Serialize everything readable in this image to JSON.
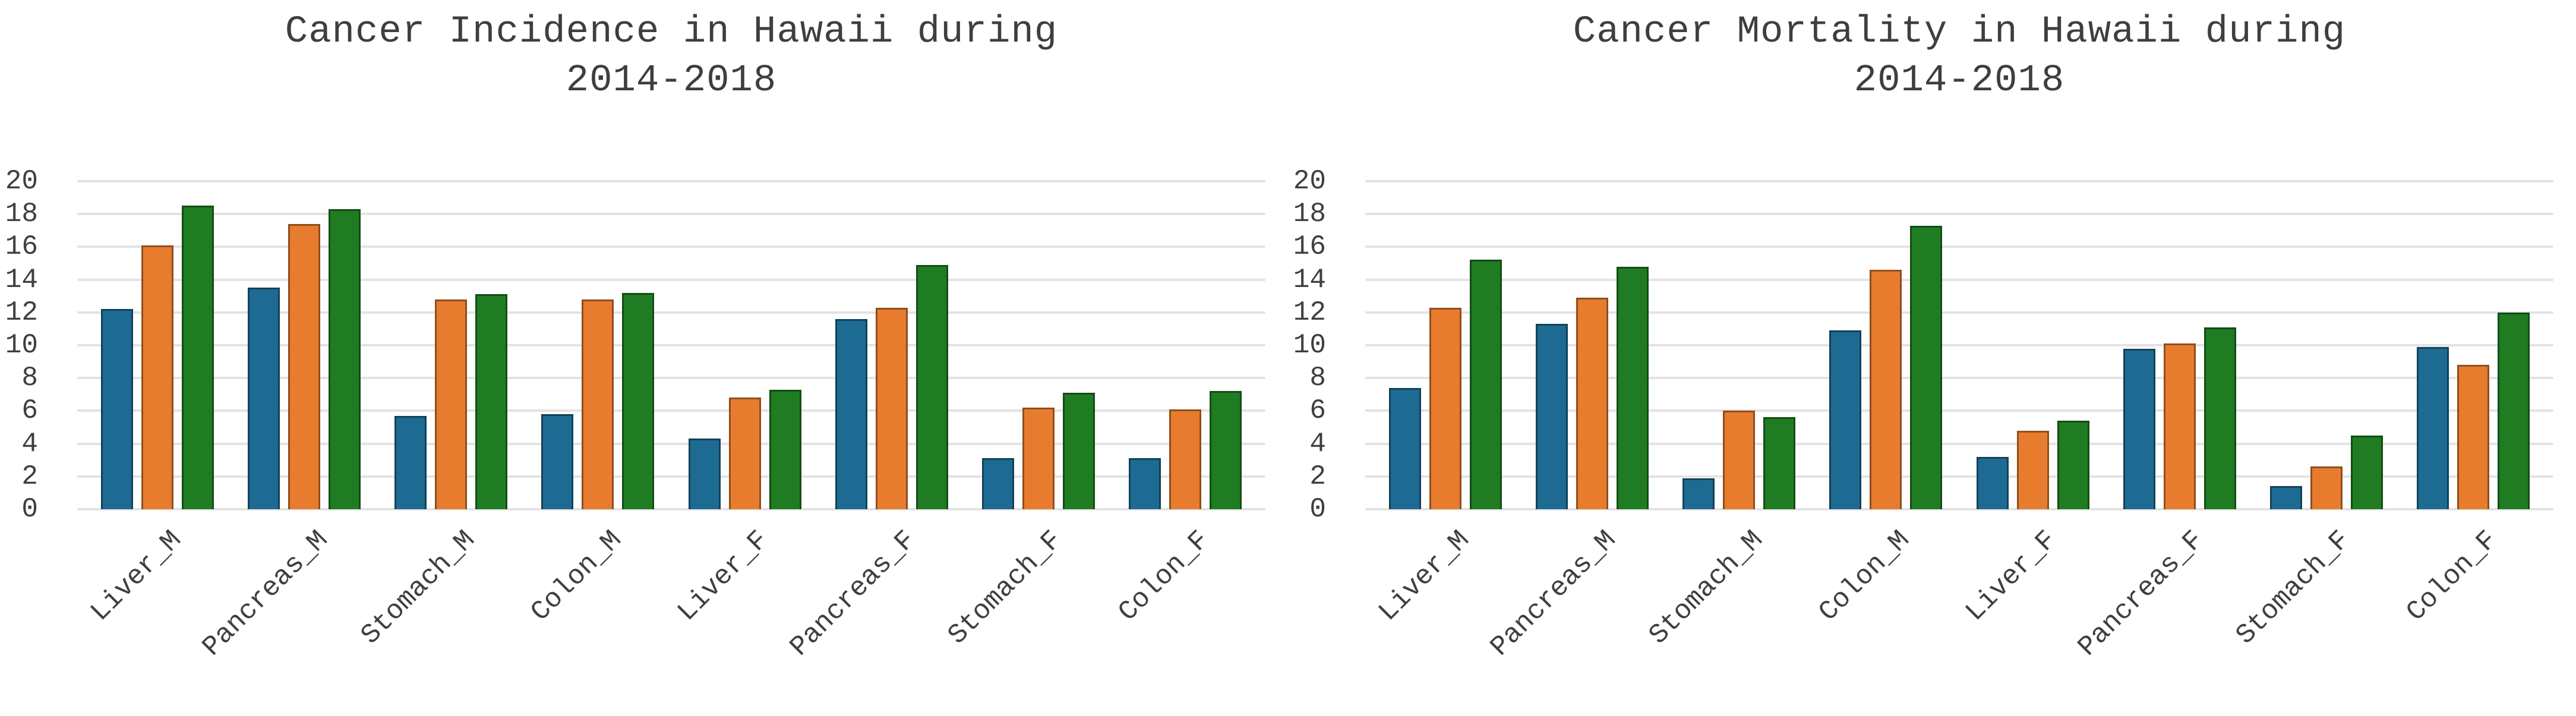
{
  "figure": {
    "background_color": "#ffffff",
    "gridline_color": "#e3e3e3",
    "text_color": "#3e3e3e"
  },
  "chart_data": [
    {
      "type": "bar",
      "title": "Cancer Incidence in Hawaii during 2014-2018",
      "title_line1": "Cancer Incidence in Hawaii during",
      "title_line2": "2014-2018",
      "xlabel": "",
      "ylabel": "",
      "ylim": [
        0,
        20
      ],
      "yticks": [
        0,
        2,
        4,
        6,
        8,
        10,
        12,
        14,
        16,
        18,
        20
      ],
      "grid": true,
      "legend": "none",
      "xtick_rotation": 45,
      "categories": [
        "Liver_M",
        "Pancreas_M",
        "Stomach_M",
        "Colon_M",
        "Liver_F",
        "Pancreas_F",
        "Stomach_F",
        "Colon_F"
      ],
      "series": [
        {
          "name": "series-blue",
          "color": "#1d6b92",
          "values": [
            12.2,
            13.5,
            5.7,
            5.8,
            4.3,
            11.6,
            3.1,
            3.1
          ]
        },
        {
          "name": "series-orange",
          "color": "#e87c2e",
          "values": [
            16.1,
            17.4,
            12.8,
            12.8,
            6.8,
            12.3,
            6.2,
            6.1
          ]
        },
        {
          "name": "series-green",
          "color": "#1f7c22",
          "values": [
            18.5,
            18.3,
            13.1,
            13.2,
            7.3,
            14.9,
            7.1,
            7.2
          ]
        }
      ]
    },
    {
      "type": "bar",
      "title": "Cancer Mortality in Hawaii during 2014-2018",
      "title_line1": "Cancer Mortality in Hawaii during",
      "title_line2": "2014-2018",
      "xlabel": "",
      "ylabel": "",
      "ylim": [
        0,
        20
      ],
      "yticks": [
        0,
        2,
        4,
        6,
        8,
        10,
        12,
        14,
        16,
        18,
        20
      ],
      "grid": true,
      "legend": "none",
      "xtick_rotation": 45,
      "categories": [
        "Liver_M",
        "Pancreas_M",
        "Stomach_M",
        "Colon_M",
        "Liver_F",
        "Pancreas_F",
        "Stomach_F",
        "Colon_F"
      ],
      "series": [
        {
          "name": "series-blue",
          "color": "#1d6b92",
          "values": [
            7.4,
            11.3,
            1.9,
            10.9,
            3.2,
            9.8,
            1.4,
            9.9
          ]
        },
        {
          "name": "series-orange",
          "color": "#e87c2e",
          "values": [
            12.3,
            12.9,
            6.0,
            14.6,
            4.8,
            10.1,
            2.6,
            8.8
          ]
        },
        {
          "name": "series-green",
          "color": "#1f7c22",
          "values": [
            15.2,
            14.8,
            5.6,
            17.3,
            5.4,
            11.1,
            4.5,
            12.0
          ]
        }
      ]
    }
  ]
}
